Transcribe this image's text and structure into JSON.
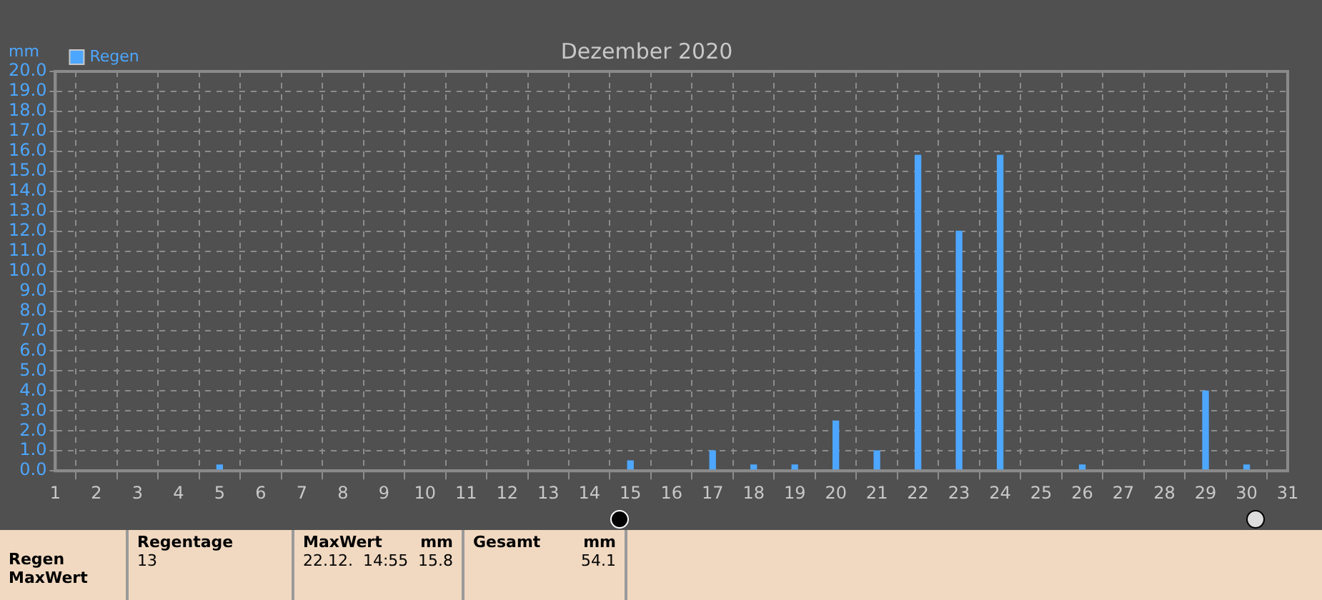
{
  "chart_data": {
    "type": "bar",
    "title": "Dezember 2020",
    "ylabel": "mm",
    "x": [
      5,
      15,
      17,
      18,
      19,
      20,
      21,
      22,
      23,
      24,
      26,
      29,
      30
    ],
    "series": [
      {
        "name": "Regen",
        "color": "#4da6ff",
        "values": [
          0.3,
          0.5,
          1.0,
          0.3,
          0.3,
          2.5,
          1.0,
          15.8,
          12.0,
          15.8,
          0.3,
          4.0,
          0.3
        ]
      }
    ],
    "xlim": [
      1,
      31
    ],
    "xticks": [
      1,
      2,
      3,
      4,
      5,
      6,
      7,
      8,
      9,
      10,
      11,
      12,
      13,
      14,
      15,
      16,
      17,
      18,
      19,
      20,
      21,
      22,
      23,
      24,
      25,
      26,
      27,
      28,
      29,
      30,
      31
    ],
    "ylim": [
      0,
      20
    ],
    "yticks": [
      {
        "value": 0,
        "label": "0.0"
      },
      {
        "value": 1,
        "label": "1.0"
      },
      {
        "value": 2,
        "label": "2.0"
      },
      {
        "value": 3,
        "label": "3.0"
      },
      {
        "value": 4,
        "label": "4.0"
      },
      {
        "value": 5,
        "label": "5.0"
      },
      {
        "value": 6,
        "label": "6.0"
      },
      {
        "value": 7,
        "label": "7.0"
      },
      {
        "value": 8,
        "label": "8.0"
      },
      {
        "value": 9,
        "label": "9.0"
      },
      {
        "value": 10,
        "label": "10.0"
      },
      {
        "value": 11,
        "label": "11.0"
      },
      {
        "value": 12,
        "label": "12.0"
      },
      {
        "value": 13,
        "label": "13.0"
      },
      {
        "value": 14,
        "label": "14.0"
      },
      {
        "value": 15,
        "label": "15.0"
      },
      {
        "value": 16,
        "label": "16.0"
      },
      {
        "value": 17,
        "label": "17.0"
      },
      {
        "value": 18,
        "label": "18.0"
      },
      {
        "value": 19,
        "label": "19.0"
      },
      {
        "value": 20,
        "label": "20.0"
      }
    ],
    "grid": true,
    "legend": "top left",
    "annotations": [
      "Regen",
      "MaxWert",
      "Regentage",
      "13",
      "MaxWert",
      "mm",
      "22.12.  14:55",
      "15.8",
      "Gesamt",
      "mm",
      "54.1"
    ]
  }
}
